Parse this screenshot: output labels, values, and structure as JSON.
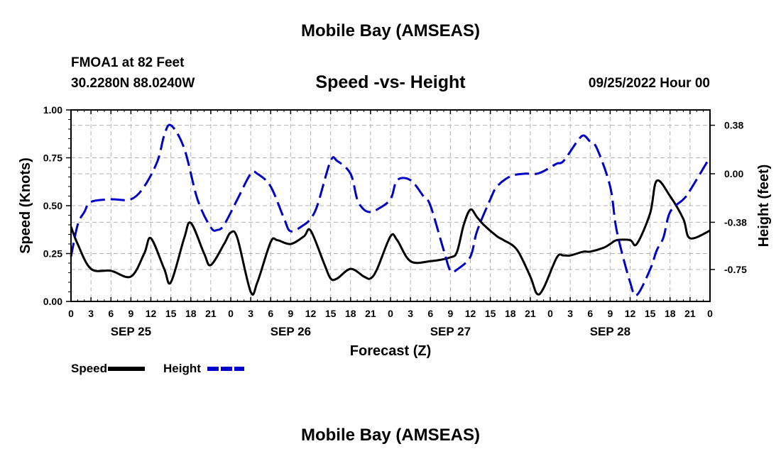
{
  "header": {
    "title": "Mobile Bay (AMSEAS)",
    "station": "FMOA1 at 82 Feet",
    "coords": "30.2280N  88.0240W",
    "datetime": "09/25/2022 Hour 00",
    "footer_title": "Mobile Bay (AMSEAS)"
  },
  "chart_data": {
    "type": "line",
    "title": "Speed -vs- Height",
    "xlabel": "Forecast (Z)",
    "ylabel": "Speed (Knots)",
    "ylabel_right": "Height (feet)",
    "ylim": [
      0,
      1.0
    ],
    "ylim_right": [
      -1.0,
      0.5
    ],
    "yticks": [
      "0.00",
      "0.25",
      "0.50",
      "0.75",
      "1.00"
    ],
    "yticks_right": [
      "-0.75",
      "-0.38",
      "0.00",
      "0.38"
    ],
    "xlim": [
      0,
      96
    ],
    "xtick_labels": [
      "0",
      "3",
      "6",
      "9",
      "12",
      "15",
      "18",
      "21",
      "0",
      "3",
      "6",
      "9",
      "12",
      "15",
      "18",
      "21",
      "0",
      "3",
      "6",
      "9",
      "12",
      "15",
      "18",
      "21",
      "0",
      "3",
      "6",
      "9",
      "12",
      "15",
      "18",
      "21",
      "0"
    ],
    "date_labels": [
      {
        "label": "SEP 25",
        "hour": 9
      },
      {
        "label": "SEP 26",
        "hour": 33
      },
      {
        "label": "SEP 27",
        "hour": 57
      },
      {
        "label": "SEP 28",
        "hour": 81
      }
    ],
    "grid": true,
    "legend_position": "bottom-left",
    "series": [
      {
        "name": "Speed",
        "color": "#000000",
        "axis": "left",
        "style": "solid",
        "x": [
          0,
          1,
          3,
          6,
          9,
          11,
          12,
          14,
          15,
          17,
          18,
          20,
          21,
          23,
          24,
          25,
          27,
          28,
          30,
          31,
          33,
          35,
          36,
          38,
          39,
          40,
          42,
          44,
          45,
          46,
          48,
          49,
          51,
          54,
          57,
          58,
          59,
          60,
          61,
          62,
          64,
          65,
          67,
          69,
          70,
          71,
          73,
          74,
          75,
          77,
          78,
          80,
          81,
          82,
          84,
          85,
          87,
          88,
          90,
          92,
          93,
          96
        ],
        "y": [
          0.39,
          0.3,
          0.17,
          0.16,
          0.13,
          0.25,
          0.33,
          0.17,
          0.1,
          0.33,
          0.41,
          0.25,
          0.19,
          0.3,
          0.36,
          0.33,
          0.05,
          0.1,
          0.31,
          0.32,
          0.3,
          0.34,
          0.37,
          0.2,
          0.12,
          0.12,
          0.17,
          0.13,
          0.12,
          0.17,
          0.34,
          0.32,
          0.21,
          0.21,
          0.23,
          0.26,
          0.4,
          0.48,
          0.44,
          0.4,
          0.34,
          0.32,
          0.27,
          0.13,
          0.04,
          0.07,
          0.23,
          0.24,
          0.24,
          0.26,
          0.26,
          0.28,
          0.3,
          0.32,
          0.32,
          0.3,
          0.46,
          0.63,
          0.55,
          0.43,
          0.33,
          0.37
        ]
      },
      {
        "name": "Height",
        "color": "#0000c8",
        "axis": "right",
        "style": "dashed",
        "x": [
          0,
          1,
          2,
          3,
          6,
          9,
          11,
          13,
          14,
          15,
          17,
          19,
          21,
          22,
          23,
          25,
          27,
          28,
          30,
          32,
          33,
          35,
          36,
          37,
          39,
          40,
          42,
          43,
          44,
          45,
          46,
          48,
          49,
          51,
          53,
          54,
          56,
          57,
          58,
          60,
          61,
          63,
          64,
          66,
          68,
          69,
          70,
          71,
          72,
          73,
          74,
          76,
          77,
          78,
          79,
          81,
          82,
          84,
          85,
          87,
          88,
          89,
          90,
          92,
          93,
          96
        ],
        "y": [
          -0.65,
          -0.4,
          -0.3,
          -0.22,
          -0.2,
          -0.2,
          -0.1,
          0.1,
          0.3,
          0.38,
          0.2,
          -0.2,
          -0.42,
          -0.44,
          -0.4,
          -0.2,
          0.0,
          0.0,
          -0.1,
          -0.35,
          -0.45,
          -0.4,
          -0.35,
          -0.25,
          0.1,
          0.1,
          0.0,
          -0.2,
          -0.28,
          -0.3,
          -0.28,
          -0.2,
          -0.05,
          -0.05,
          -0.18,
          -0.25,
          -0.6,
          -0.76,
          -0.75,
          -0.65,
          -0.45,
          -0.2,
          -0.1,
          -0.02,
          0.0,
          0.0,
          0.0,
          0.02,
          0.05,
          0.08,
          0.1,
          0.25,
          0.3,
          0.25,
          0.2,
          -0.1,
          -0.45,
          -0.85,
          -0.95,
          -0.75,
          -0.6,
          -0.5,
          -0.3,
          -0.2,
          -0.13,
          0.13
        ]
      }
    ]
  }
}
